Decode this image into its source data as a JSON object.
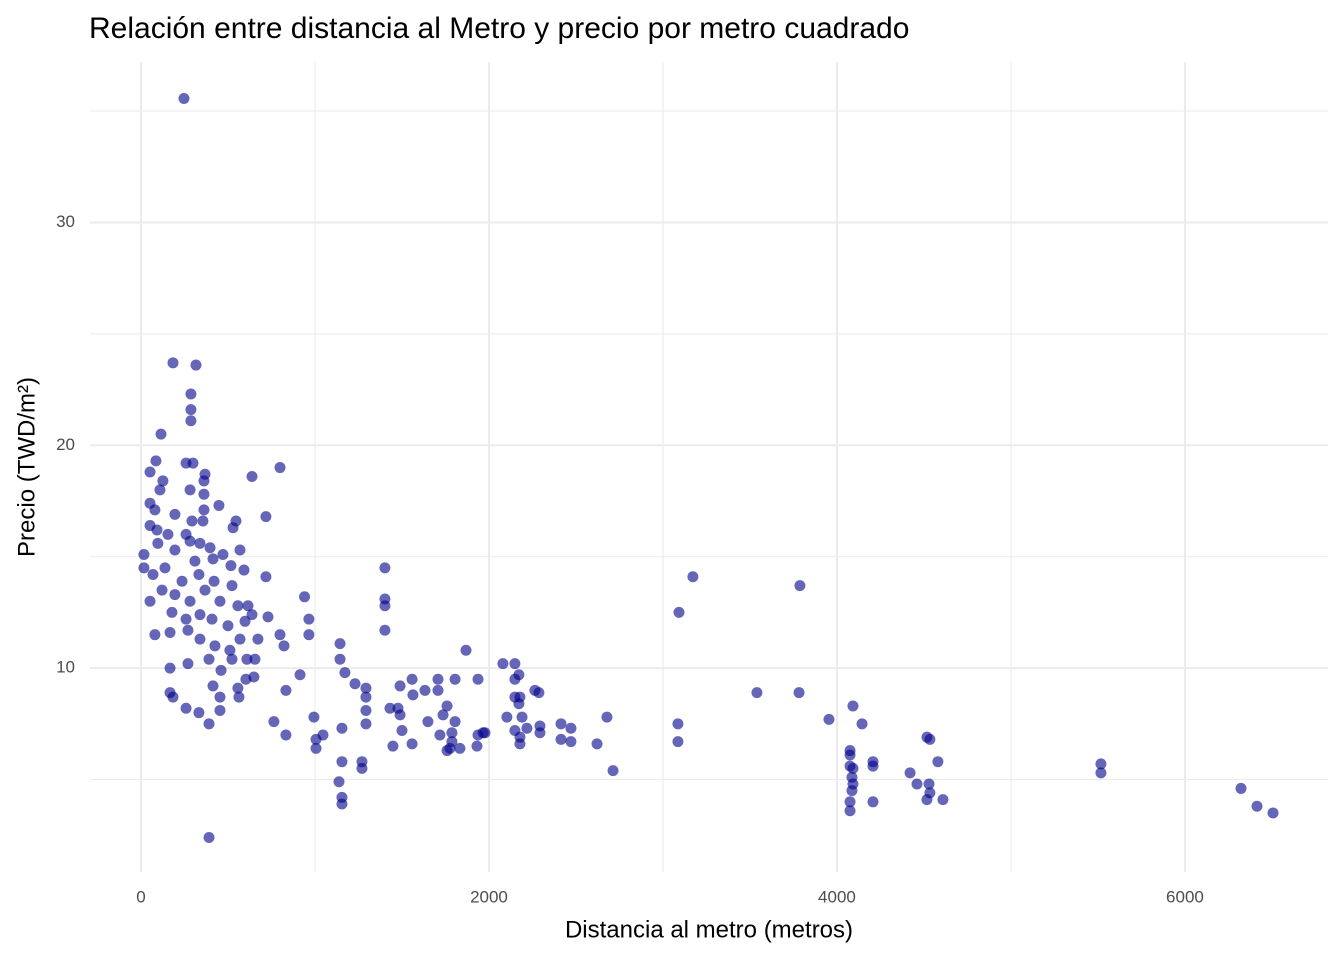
{
  "chart_data": {
    "type": "scatter",
    "title": "Relación entre distancia al Metro y precio por metro cuadrado",
    "x_label": "Distancia al metro (metros)",
    "y_label": "Precio (TWD/m²)",
    "color": "#00008b",
    "opacity": 0.6,
    "grid": true,
    "xlim": [
      -293,
      6822
    ],
    "ylim": [
      0.85,
      37.2
    ],
    "xticks": [
      0,
      2000,
      4000,
      6000
    ],
    "yticks": [
      10,
      20,
      30
    ],
    "x_minor_grid": [
      1000,
      3000,
      5000
    ],
    "y_minor_grid": [
      5,
      15,
      25,
      35
    ],
    "x": [
      247,
      184,
      316,
      287,
      287,
      287,
      115,
      391,
      52,
      86,
      259,
      299,
      368,
      799,
      638,
      718,
      362,
      362,
      282,
      448,
      52,
      126,
      109,
      80,
      195,
      293,
      362,
      356,
      546,
      529,
      52,
      92,
      155,
      259,
      282,
      339,
      397,
      471,
      569,
      17,
      97,
      195,
      310,
      414,
      517,
      592,
      718,
      940,
      1402,
      1402,
      1402,
      1402,
      17,
      69,
      138,
      236,
      333,
      420,
      523,
      52,
      121,
      195,
      282,
      368,
      454,
      557,
      615,
      178,
      259,
      339,
      408,
      500,
      598,
      638,
      730,
      80,
      167,
      270,
      339,
      425,
      511,
      569,
      672,
      799,
      822,
      965,
      965,
      167,
      270,
      391,
      460,
      523,
      609,
      655,
      914,
      1144,
      1144,
      1172,
      167,
      184,
      259,
      333,
      391,
      414,
      454,
      454,
      557,
      563,
      603,
      649,
      764,
      833,
      833,
      994,
      1006,
      1006,
      1046,
      1230,
      1155,
      1155,
      1270,
      1270,
      1138,
      1155,
      1155,
      1293,
      1293,
      1293,
      1293,
      1431,
      1477,
      1448,
      1489,
      1489,
      1558,
      1563,
      1500,
      1558,
      1632,
      1649,
      1707,
      1707,
      1718,
      1736,
      1759,
      1787,
      1787,
      1805,
      1776,
      1833,
      1759,
      1805,
      1868,
      1937,
      1937,
      1931,
      1966,
      1977,
      2080,
      2149,
      2172,
      2149,
      2149,
      2178,
      2172,
      2103,
      2190,
      2149,
      2178,
      2178,
      2218,
      2264,
      2287,
      2293,
      2293,
      2414,
      2414,
      2471,
      2471,
      2621,
      2678,
      2713,
      3092,
      3172,
      3086,
      3086,
      3787,
      3540,
      3782,
      3954,
      4092,
      4144,
      4075,
      4075,
      4075,
      4092,
      4086,
      4092,
      4086,
      4075,
      4075,
      4207,
      4207,
      4207,
      4420,
      4460,
      4517,
      4534,
      4529,
      4534,
      4517,
      4580,
      4609,
      5517,
      5517,
      6322,
      6414,
      6506
    ],
    "values": [
      35.56,
      23.7,
      23.6,
      22.3,
      21.6,
      21.1,
      20.5,
      2.4,
      18.8,
      19.3,
      19.2,
      19.2,
      18.7,
      19.0,
      18.6,
      16.8,
      18.4,
      17.8,
      18.0,
      17.3,
      17.4,
      18.4,
      18.0,
      17.1,
      16.9,
      16.6,
      17.1,
      16.6,
      16.6,
      16.3,
      16.4,
      16.2,
      16.0,
      16.0,
      15.7,
      15.6,
      15.4,
      15.1,
      15.3,
      15.1,
      15.6,
      15.3,
      14.8,
      14.9,
      14.6,
      14.4,
      14.1,
      13.2,
      14.5,
      13.1,
      12.8,
      11.7,
      14.5,
      14.2,
      14.5,
      13.9,
      14.2,
      13.9,
      13.7,
      13.0,
      13.5,
      13.3,
      13.0,
      13.5,
      13.0,
      12.8,
      12.8,
      12.5,
      12.2,
      12.4,
      12.2,
      11.9,
      12.1,
      12.4,
      12.3,
      11.5,
      11.6,
      11.7,
      11.3,
      11.0,
      10.8,
      11.3,
      11.3,
      11.5,
      11.0,
      12.2,
      11.5,
      10.0,
      10.2,
      10.4,
      9.9,
      10.4,
      10.4,
      10.4,
      9.7,
      11.1,
      10.4,
      9.8,
      8.9,
      8.7,
      8.2,
      8.0,
      7.5,
      9.2,
      8.1,
      8.7,
      9.1,
      8.7,
      9.5,
      9.6,
      7.6,
      9.0,
      7.0,
      7.8,
      6.8,
      6.4,
      7.0,
      9.3,
      7.3,
      5.8,
      5.8,
      5.5,
      4.9,
      4.2,
      3.9,
      9.1,
      8.7,
      8.1,
      7.5,
      8.2,
      8.2,
      6.5,
      7.9,
      9.2,
      9.5,
      8.8,
      7.2,
      6.6,
      9.0,
      7.6,
      9.5,
      9.0,
      7.0,
      7.9,
      8.3,
      7.1,
      6.7,
      7.6,
      6.4,
      6.4,
      6.3,
      9.5,
      10.8,
      9.5,
      7.0,
      6.5,
      7.1,
      7.1,
      10.2,
      10.2,
      9.7,
      9.5,
      8.7,
      8.7,
      8.4,
      7.8,
      7.8,
      7.2,
      6.9,
      6.6,
      7.3,
      9.0,
      8.9,
      7.4,
      7.1,
      7.5,
      6.8,
      7.3,
      6.7,
      6.6,
      7.8,
      5.4,
      12.5,
      14.1,
      7.5,
      6.7,
      13.7,
      8.9,
      8.9,
      7.7,
      8.3,
      7.5,
      6.3,
      6.1,
      5.6,
      5.5,
      5.1,
      4.8,
      4.5,
      4.0,
      3.6,
      5.8,
      5.6,
      4.0,
      5.3,
      4.8,
      6.9,
      6.8,
      4.8,
      4.4,
      4.1,
      5.8,
      4.1,
      5.7,
      5.3,
      4.6,
      3.8,
      3.5
    ]
  }
}
